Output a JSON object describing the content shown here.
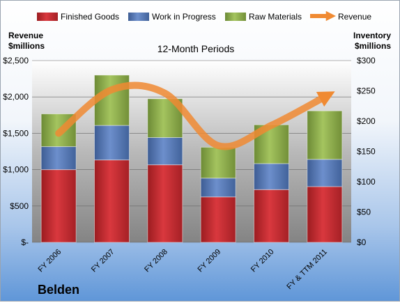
{
  "chart_data": {
    "type": "bar",
    "stacked": true,
    "title": "12-Month Periods",
    "company": "Belden",
    "left_axis_label_line1": "Revenue",
    "left_axis_label_line2": "$millions",
    "right_axis_label_line1": "Inventory",
    "right_axis_label_line2": "$millions",
    "categories": [
      "FY 2006",
      "FY 2007",
      "FY 2008",
      "FY 2009",
      "FY 2010",
      "FY & TTM 2011"
    ],
    "series": [
      {
        "name": "Finished Goods",
        "axis": "right",
        "color": "#c0272d",
        "values": [
          120,
          136,
          128,
          75,
          87,
          92
        ]
      },
      {
        "name": "Work in Progress",
        "axis": "right",
        "color": "#4f73b3",
        "values": [
          38,
          57,
          45,
          31,
          43,
          45
        ]
      },
      {
        "name": "Raw Materials",
        "axis": "right",
        "color": "#8bae4b",
        "values": [
          54,
          83,
          64,
          51,
          64,
          80
        ]
      }
    ],
    "line_series": {
      "name": "Revenue",
      "axis": "left",
      "color": "#f08a32",
      "values": [
        1500,
        2100,
        2050,
        1330,
        1610,
        2000
      ]
    },
    "left_axis": {
      "min": 0,
      "max": 2500,
      "ticks": [
        "$-",
        "$500",
        "$1,000",
        "$1,500",
        "$2,000",
        "$2,500"
      ]
    },
    "right_axis": {
      "min": 0,
      "max": 300,
      "ticks": [
        "$0",
        "$50",
        "$100",
        "$150",
        "$200",
        "$250",
        "$300"
      ]
    },
    "legend_position": "top",
    "grid": true
  }
}
